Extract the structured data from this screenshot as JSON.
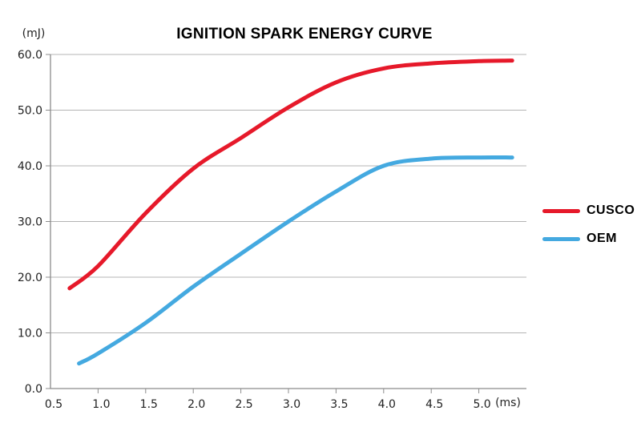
{
  "chart_data": {
    "type": "line",
    "title": "IGNITION SPARK ENERGY CURVE",
    "xlabel": "(ms)",
    "ylabel": "(mJ)",
    "xlim": [
      0.5,
      5.5
    ],
    "ylim": [
      0,
      60
    ],
    "x_ticks": [
      0.5,
      1.0,
      1.5,
      2.0,
      2.5,
      3.0,
      3.5,
      4.0,
      4.5,
      5.0
    ],
    "y_ticks": [
      0,
      10,
      20,
      30,
      40,
      50,
      60
    ],
    "grid": "horizontal-only",
    "legend_position": "right-center",
    "colors": {
      "grid": "#b4b4b4",
      "axis": "#8c8c8c",
      "tick_text": "#222222",
      "title_text": "#000000",
      "background": "#ffffff"
    },
    "series": [
      {
        "name": "CUSCO",
        "color": "#e6192a",
        "points": [
          [
            0.7,
            18.0
          ],
          [
            1.0,
            22.0
          ],
          [
            1.5,
            31.5
          ],
          [
            2.0,
            39.5
          ],
          [
            2.5,
            45.0
          ],
          [
            3.0,
            50.5
          ],
          [
            3.5,
            55.0
          ],
          [
            4.0,
            57.5
          ],
          [
            4.5,
            58.4
          ],
          [
            5.0,
            58.8
          ],
          [
            5.35,
            58.9
          ]
        ]
      },
      {
        "name": "OEM",
        "color": "#44a9e0",
        "points": [
          [
            0.8,
            4.5
          ],
          [
            1.0,
            6.3
          ],
          [
            1.5,
            11.8
          ],
          [
            2.0,
            18.3
          ],
          [
            2.5,
            24.2
          ],
          [
            3.0,
            30.0
          ],
          [
            3.5,
            35.4
          ],
          [
            4.0,
            40.0
          ],
          [
            4.5,
            41.3
          ],
          [
            5.0,
            41.5
          ],
          [
            5.35,
            41.5
          ]
        ]
      }
    ]
  }
}
